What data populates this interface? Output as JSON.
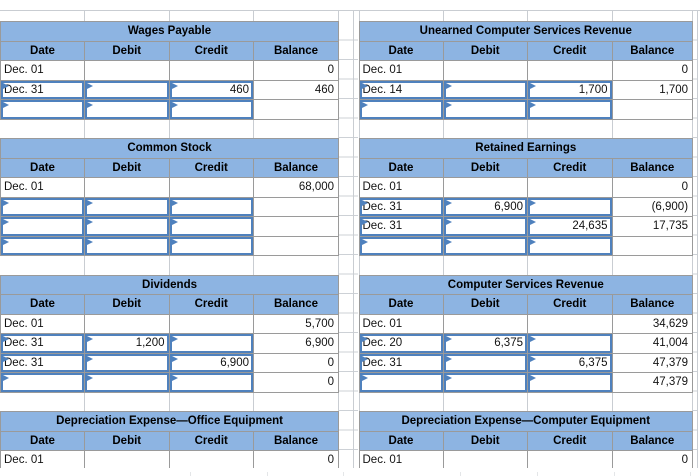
{
  "column_headers": [
    "Date",
    "Debit",
    "Credit",
    "Balance"
  ],
  "tables": [
    {
      "title": "Wages Payable",
      "rows": [
        {
          "date": "Dec. 01",
          "debit": "",
          "credit": "",
          "balance": "0",
          "inputs": []
        },
        {
          "date": "Dec. 31",
          "debit": "",
          "credit": "460",
          "balance": "460",
          "inputs": [
            "date",
            "debit",
            "credit"
          ]
        },
        {
          "date": "",
          "debit": "",
          "credit": "",
          "balance": "",
          "inputs": [
            "date",
            "debit",
            "credit"
          ]
        }
      ]
    },
    {
      "title": "Unearned Computer Services Revenue",
      "rows": [
        {
          "date": "Dec. 01",
          "debit": "",
          "credit": "",
          "balance": "0",
          "inputs": []
        },
        {
          "date": "Dec. 14",
          "debit": "",
          "credit": "1,700",
          "balance": "1,700",
          "inputs": [
            "date",
            "debit",
            "credit"
          ]
        },
        {
          "date": "",
          "debit": "",
          "credit": "",
          "balance": "",
          "inputs": [
            "date",
            "debit",
            "credit"
          ]
        }
      ]
    },
    {
      "title": "Common Stock",
      "rows": [
        {
          "date": "Dec. 01",
          "debit": "",
          "credit": "",
          "balance": "68,000",
          "inputs": []
        },
        {
          "date": "",
          "debit": "",
          "credit": "",
          "balance": "",
          "inputs": [
            "date",
            "debit",
            "credit"
          ]
        },
        {
          "date": "",
          "debit": "",
          "credit": "",
          "balance": "",
          "inputs": [
            "date",
            "debit",
            "credit"
          ]
        },
        {
          "date": "",
          "debit": "",
          "credit": "",
          "balance": "",
          "inputs": [
            "date",
            "debit",
            "credit"
          ]
        }
      ]
    },
    {
      "title": "Retained Earnings",
      "rows": [
        {
          "date": "Dec. 01",
          "debit": "",
          "credit": "",
          "balance": "0",
          "inputs": []
        },
        {
          "date": "Dec. 31",
          "debit": "6,900",
          "credit": "",
          "balance": "(6,900)",
          "inputs": [
            "date",
            "debit",
            "credit"
          ]
        },
        {
          "date": "Dec. 31",
          "debit": "",
          "credit": "24,635",
          "balance": "17,735",
          "inputs": [
            "date",
            "debit",
            "credit"
          ]
        },
        {
          "date": "",
          "debit": "",
          "credit": "",
          "balance": "",
          "inputs": [
            "date",
            "debit",
            "credit"
          ]
        }
      ]
    },
    {
      "title": "Dividends",
      "rows": [
        {
          "date": "Dec. 01",
          "debit": "",
          "credit": "",
          "balance": "5,700",
          "inputs": []
        },
        {
          "date": "Dec. 31",
          "debit": "1,200",
          "credit": "",
          "balance": "6,900",
          "inputs": [
            "date",
            "debit",
            "credit"
          ]
        },
        {
          "date": "Dec. 31",
          "debit": "",
          "credit": "6,900",
          "balance": "0",
          "inputs": [
            "date",
            "debit",
            "credit"
          ]
        },
        {
          "date": "",
          "debit": "",
          "credit": "",
          "balance": "0",
          "inputs": [
            "date",
            "debit",
            "credit"
          ]
        }
      ]
    },
    {
      "title": "Computer Services Revenue",
      "rows": [
        {
          "date": "Dec. 01",
          "debit": "",
          "credit": "",
          "balance": "34,629",
          "inputs": []
        },
        {
          "date": "Dec. 20",
          "debit": "6,375",
          "credit": "",
          "balance": "41,004",
          "inputs": [
            "date",
            "debit",
            "credit"
          ]
        },
        {
          "date": "Dec. 31",
          "debit": "",
          "credit": "6,375",
          "balance": "47,379",
          "inputs": [
            "date",
            "debit",
            "credit"
          ]
        },
        {
          "date": "",
          "debit": "",
          "credit": "",
          "balance": "47,379",
          "inputs": [
            "date",
            "debit",
            "credit"
          ]
        }
      ]
    },
    {
      "title": "Depreciation Expense—Office Equipment",
      "rows": [
        {
          "date": "Dec. 01",
          "debit": "",
          "credit": "",
          "balance": "0",
          "inputs": []
        }
      ]
    },
    {
      "title": "Depreciation Expense—Computer Equipment",
      "rows": [
        {
          "date": "Dec. 01",
          "debit": "",
          "credit": "",
          "balance": "0",
          "inputs": []
        }
      ]
    }
  ],
  "icons": {
    "answer_flag": "small blue right-pointing triangle marker in top-left of answer cells"
  },
  "colors": {
    "header_fill": "#8DB4E2",
    "input_border": "#4F81BD",
    "table_grid": "#9A9A9A",
    "sheet_grid": "#C9CDD2"
  }
}
